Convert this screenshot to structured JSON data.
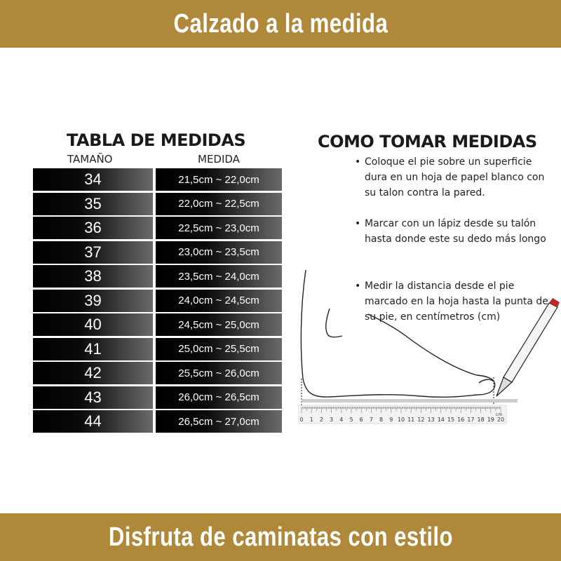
{
  "header": {
    "title": "Calzado a la medida"
  },
  "footer": {
    "title": "Disfruta de caminatas  con estilo"
  },
  "colors": {
    "banner": "#b0883a",
    "pencil_tip": "#c0282a"
  },
  "table": {
    "title": "TABLA DE MEDIDAS",
    "col_size": "TAMAÑO",
    "col_measure": "MEDIDA",
    "rows": [
      {
        "size": "34",
        "measure": "21,5cm ~ 22,0cm"
      },
      {
        "size": "35",
        "measure": "22,0cm ~ 22,5cm"
      },
      {
        "size": "36",
        "measure": "22,5cm ~ 23,0cm"
      },
      {
        "size": "37",
        "measure": "23,0cm ~ 23,5cm"
      },
      {
        "size": "38",
        "measure": "23,5cm ~ 24,0cm"
      },
      {
        "size": "39",
        "measure": "24,0cm ~ 24,5cm"
      },
      {
        "size": "40",
        "measure": "24,5cm ~ 25,0cm"
      },
      {
        "size": "41",
        "measure": "25,0cm ~ 25,5cm"
      },
      {
        "size": "42",
        "measure": "25,5cm ~ 26,0cm"
      },
      {
        "size": "43",
        "measure": "26,0cm ~ 26,5cm"
      },
      {
        "size": "44",
        "measure": "26,5cm ~ 27,0cm"
      }
    ]
  },
  "howto": {
    "title": "COMO TOMAR MEDIDAS",
    "bullet": "•",
    "steps": [
      "Coloque el pie sobre un superficie dura en un hoja de papel blanco con su talon contra la pared.",
      "Marcar con un lápiz desde su talón hasta donde este su dedo más longo",
      "Medir la distancia desde el pie marcado en la hoja hasta la punta de su pie, en centímetros (cm)"
    ]
  },
  "ruler": {
    "labels": [
      "0",
      "1",
      "2",
      "3",
      "4",
      "5",
      "6",
      "7",
      "8",
      "9",
      "10",
      "11",
      "12",
      "13",
      "14",
      "15",
      "16",
      "17",
      "18",
      "19",
      "20"
    ],
    "unit": "cm"
  }
}
